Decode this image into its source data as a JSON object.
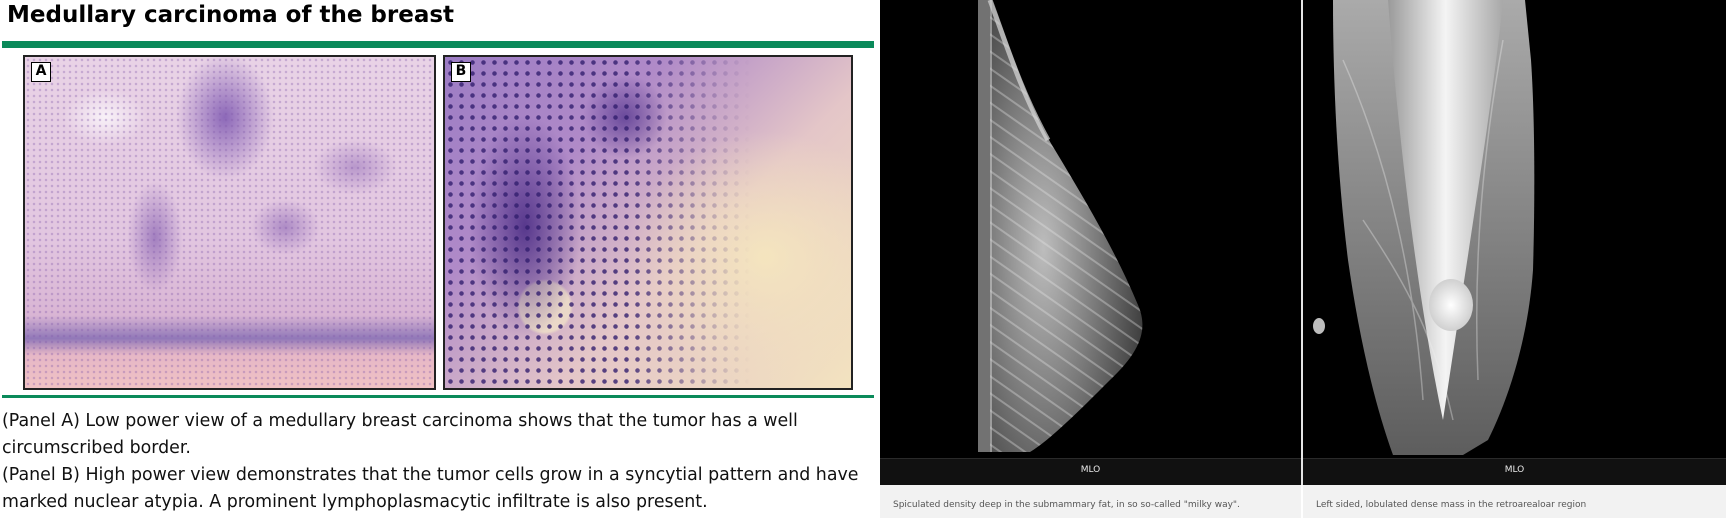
{
  "figure": {
    "title": "Medullary carcinoma of the breast",
    "panels": [
      {
        "label": "A"
      },
      {
        "label": "B"
      }
    ],
    "caption_lines": [
      "(Panel A) Low power view of a medullary breast carcinoma shows that the tumor has a well circumscribed border.",
      "(Panel B) High power view demonstrates that the tumor cells grow in a syncytial pattern and have marked nuclear atypia. A prominent lymphoplasmacytic infiltrate is also present."
    ]
  },
  "viewers": [
    {
      "view_label": "MLO",
      "caption": "Spiculated density deep in the submammary fat, in so so-called \"milky way\"."
    },
    {
      "view_label": "MLO",
      "caption": "Left sided, lobulated dense mass in the retroarealoar region"
    }
  ],
  "colors": {
    "accent_rule": "#0a8a5a",
    "xray_bg": "#000000",
    "viewer_bar": "#111111"
  }
}
